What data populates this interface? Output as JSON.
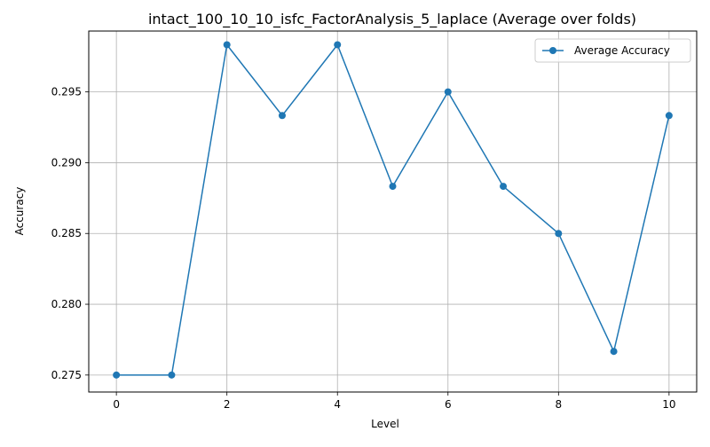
{
  "chart_data": {
    "type": "line",
    "title": "intact_100_10_10_isfc_FactorAnalysis_5_laplace (Average over folds)",
    "xlabel": "Level",
    "ylabel": "Accuracy",
    "x": [
      0,
      1,
      2,
      3,
      4,
      5,
      6,
      7,
      8,
      9,
      10
    ],
    "series": [
      {
        "name": "Average Accuracy",
        "color": "#1f77b4",
        "marker": "circle",
        "values": [
          0.275,
          0.275,
          0.29833,
          0.29333,
          0.29833,
          0.28833,
          0.295,
          0.28833,
          0.285,
          0.27667,
          0.29333
        ]
      }
    ],
    "xlim": [
      -0.5,
      10.5
    ],
    "ylim": [
      0.2738,
      0.2993
    ],
    "xticks": [
      0,
      2,
      4,
      6,
      8,
      10
    ],
    "xtick_labels": [
      "0",
      "2",
      "4",
      "6",
      "8",
      "10"
    ],
    "yticks": [
      0.275,
      0.28,
      0.285,
      0.29,
      0.295
    ],
    "ytick_labels": [
      "0.275",
      "0.280",
      "0.285",
      "0.290",
      "0.295"
    ],
    "grid": true,
    "legend_position": "top-right",
    "colors": {
      "series": "#1f77b4",
      "grid": "#b0b0b0",
      "axis": "#000000"
    }
  }
}
